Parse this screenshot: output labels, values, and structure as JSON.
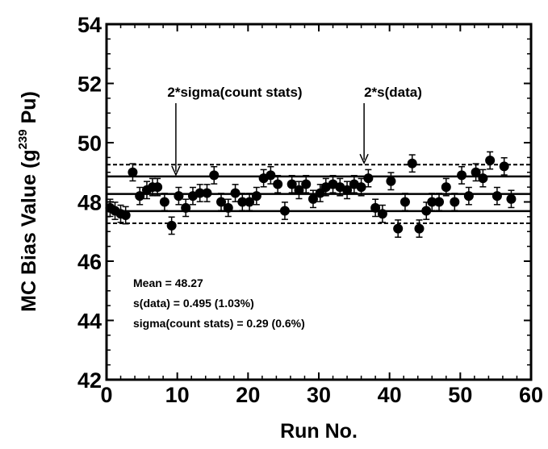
{
  "chart_data": {
    "type": "scatter",
    "xlabel": "Run No.",
    "ylabel_prefix": "MC Bias Value (g",
    "ylabel_sup": "239",
    "ylabel_suffix": " Pu)",
    "xlim": [
      0,
      60
    ],
    "ylim": [
      42,
      54
    ],
    "x_ticks": [
      "0",
      "10",
      "20",
      "30",
      "40",
      "50",
      "60"
    ],
    "y_ticks": [
      "42",
      "44",
      "46",
      "48",
      "50",
      "52",
      "54"
    ],
    "grid": false,
    "reference_lines": [
      {
        "value": 48.27,
        "style": "solid",
        "role": "mean"
      },
      {
        "value": 48.86,
        "style": "solid",
        "role": "mean + 2*sigma(count stats)"
      },
      {
        "value": 47.69,
        "style": "solid",
        "role": "mean - 2*sigma(count stats)"
      },
      {
        "value": 49.26,
        "style": "dashed",
        "role": "mean + 2*s(data)"
      },
      {
        "value": 47.28,
        "style": "dashed",
        "role": "mean - 2*s(data)"
      }
    ],
    "annotations": [
      {
        "text": "2*sigma(count stats)",
        "arrow_x": 9.8,
        "arrow_to_y": 48.86
      },
      {
        "text": "2*s(data)",
        "arrow_x": 36.4,
        "arrow_to_y": 49.26
      }
    ],
    "stats_text": [
      "Mean = 48.27",
      "s(data) = 0.495 (1.03%)",
      "sigma(count stats) = 0.29 (0.6%)"
    ],
    "error_bar": 0.29,
    "points": [
      {
        "x": 0.5,
        "y": 47.8
      },
      {
        "x": 1.2,
        "y": 47.7
      },
      {
        "x": 2.0,
        "y": 47.6
      },
      {
        "x": 2.7,
        "y": 47.55
      },
      {
        "x": 3.7,
        "y": 49.0
      },
      {
        "x": 4.7,
        "y": 48.2
      },
      {
        "x": 5.7,
        "y": 48.4
      },
      {
        "x": 6.5,
        "y": 48.5
      },
      {
        "x": 7.2,
        "y": 48.5
      },
      {
        "x": 8.2,
        "y": 48.0
      },
      {
        "x": 9.2,
        "y": 47.2
      },
      {
        "x": 10.2,
        "y": 48.2
      },
      {
        "x": 11.2,
        "y": 47.8
      },
      {
        "x": 12.2,
        "y": 48.2
      },
      {
        "x": 13.2,
        "y": 48.3
      },
      {
        "x": 14.2,
        "y": 48.3
      },
      {
        "x": 15.2,
        "y": 48.9
      },
      {
        "x": 16.2,
        "y": 48.0
      },
      {
        "x": 17.2,
        "y": 47.8
      },
      {
        "x": 18.2,
        "y": 48.3
      },
      {
        "x": 19.2,
        "y": 48.0
      },
      {
        "x": 20.2,
        "y": 48.0
      },
      {
        "x": 21.2,
        "y": 48.2
      },
      {
        "x": 22.2,
        "y": 48.8
      },
      {
        "x": 23.2,
        "y": 48.9
      },
      {
        "x": 24.2,
        "y": 48.6
      },
      {
        "x": 25.2,
        "y": 47.7
      },
      {
        "x": 26.2,
        "y": 48.6
      },
      {
        "x": 27.2,
        "y": 48.4
      },
      {
        "x": 28.2,
        "y": 48.6
      },
      {
        "x": 29.2,
        "y": 48.1
      },
      {
        "x": 30.2,
        "y": 48.3
      },
      {
        "x": 31.0,
        "y": 48.5
      },
      {
        "x": 32.0,
        "y": 48.6
      },
      {
        "x": 33.0,
        "y": 48.5
      },
      {
        "x": 34.0,
        "y": 48.4
      },
      {
        "x": 35.0,
        "y": 48.6
      },
      {
        "x": 36.0,
        "y": 48.5
      },
      {
        "x": 37.0,
        "y": 48.8
      },
      {
        "x": 38.0,
        "y": 47.8
      },
      {
        "x": 39.0,
        "y": 47.6
      },
      {
        "x": 40.2,
        "y": 48.7
      },
      {
        "x": 41.2,
        "y": 47.1
      },
      {
        "x": 42.2,
        "y": 48.0
      },
      {
        "x": 43.2,
        "y": 49.3
      },
      {
        "x": 44.2,
        "y": 47.1
      },
      {
        "x": 45.2,
        "y": 47.7
      },
      {
        "x": 46.0,
        "y": 48.0
      },
      {
        "x": 47.0,
        "y": 48.0
      },
      {
        "x": 48.0,
        "y": 48.5
      },
      {
        "x": 49.2,
        "y": 48.0
      },
      {
        "x": 50.2,
        "y": 48.9
      },
      {
        "x": 51.2,
        "y": 48.2
      },
      {
        "x": 52.2,
        "y": 49.0
      },
      {
        "x": 53.2,
        "y": 48.8
      },
      {
        "x": 54.2,
        "y": 49.4
      },
      {
        "x": 55.2,
        "y": 48.2
      },
      {
        "x": 56.2,
        "y": 49.2
      },
      {
        "x": 57.2,
        "y": 48.1
      }
    ]
  }
}
